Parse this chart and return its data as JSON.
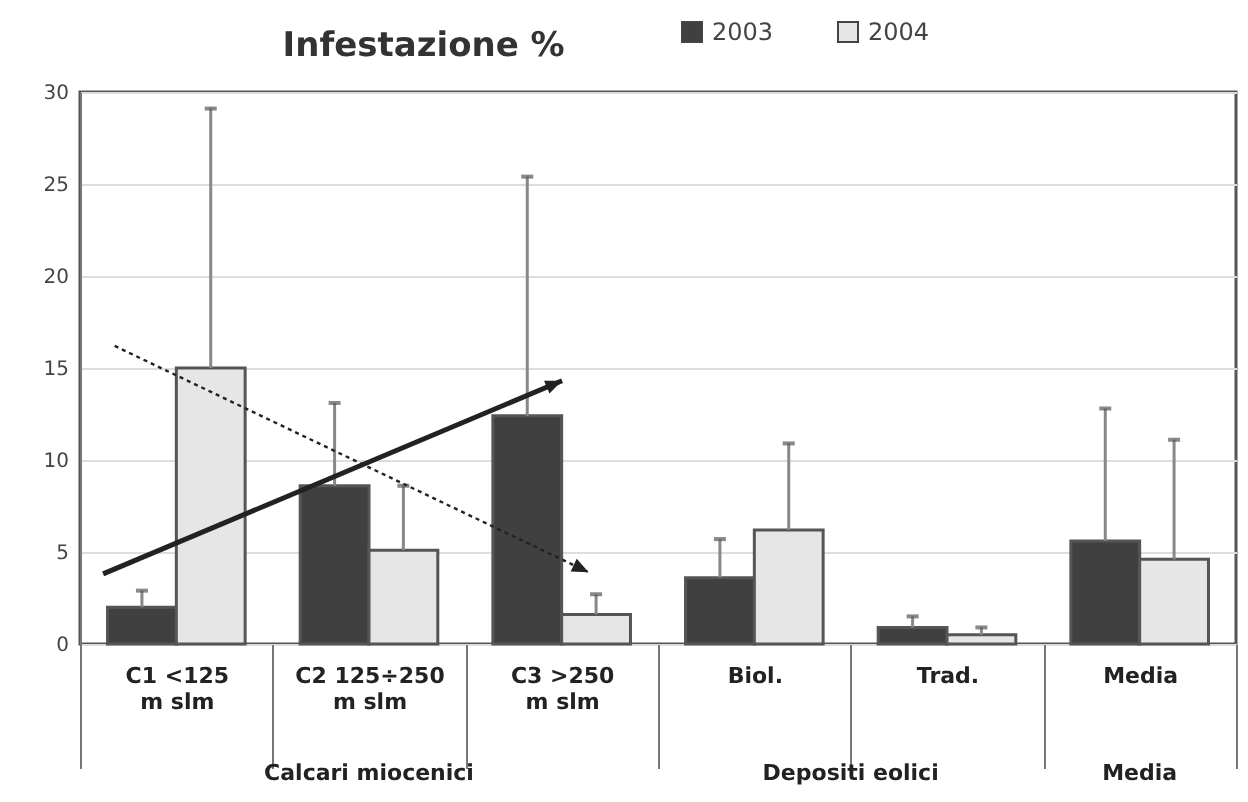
{
  "chart_data": {
    "type": "bar",
    "title": "Infestazione %",
    "categories": [
      "C1 <125 m slm",
      "C2 125÷250 m slm",
      "C3 >250 m slm",
      "Biol.",
      "Trad.",
      "Media"
    ],
    "series": [
      {
        "name": "2003",
        "color": "#404040",
        "values": [
          2.0,
          8.6,
          12.4,
          3.6,
          0.9,
          5.6
        ],
        "errors": [
          [
            2.0,
            2.9
          ],
          [
            8.6,
            13.1
          ],
          [
            12.4,
            25.4
          ],
          [
            3.6,
            5.7
          ],
          [
            0.9,
            1.5
          ],
          [
            5.6,
            12.8
          ]
        ]
      },
      {
        "name": "2004",
        "color": "#e6e6e6",
        "values": [
          15.0,
          5.1,
          1.6,
          6.2,
          0.5,
          4.6
        ],
        "errors": [
          [
            15.0,
            29.1
          ],
          [
            5.1,
            8.6
          ],
          [
            1.6,
            2.7
          ],
          [
            6.2,
            10.9
          ],
          [
            0.5,
            0.9
          ],
          [
            4.6,
            11.1
          ]
        ]
      }
    ],
    "annotations": [
      "Calcari miocenici",
      "Depositi eolici",
      "Media"
    ],
    "ylim": [
      0,
      30
    ],
    "yticks": [
      0,
      5,
      10,
      15,
      20,
      25,
      30
    ],
    "grid": "y",
    "legend": "top"
  }
}
